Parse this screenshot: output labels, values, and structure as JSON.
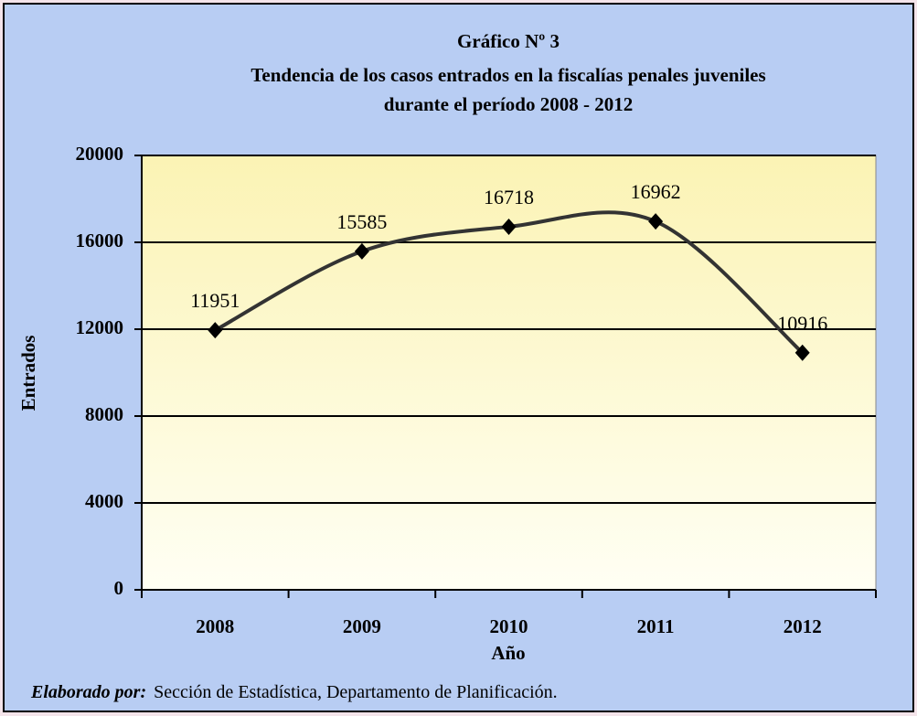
{
  "chart_data": {
    "type": "line",
    "title": [
      "Gráfico Nº 3",
      "Tendencia de los casos entrados en la fiscalías penales juveniles",
      "durante el período 2008 - 2012"
    ],
    "x_label": "Año",
    "y_label": "Entrados",
    "categories": [
      "2008",
      "2009",
      "2010",
      "2011",
      "2012"
    ],
    "values": [
      11951,
      15585,
      16718,
      16962,
      10916
    ],
    "color": "#333333",
    "smooth": true,
    "grid": true,
    "ylim": [
      0,
      20000
    ],
    "yticks": [
      0,
      4000,
      8000,
      12000,
      16000,
      20000
    ],
    "note": {
      "label": "Elaborado por:",
      "text": "Sección de Estadística, Departamento de Planificación."
    }
  }
}
